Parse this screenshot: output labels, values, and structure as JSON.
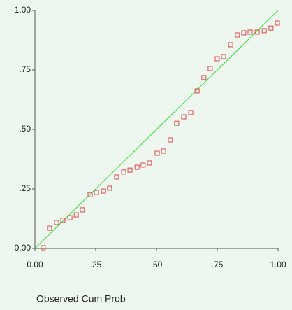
{
  "chart_data": {
    "type": "scatter",
    "xlabel": "Observed Cum Prob",
    "x": [
      0.034,
      0.06,
      0.089,
      0.115,
      0.144,
      0.17,
      0.195,
      0.227,
      0.253,
      0.282,
      0.307,
      0.336,
      0.365,
      0.391,
      0.42,
      0.445,
      0.471,
      0.503,
      0.529,
      0.557,
      0.583,
      0.612,
      0.641,
      0.667,
      0.695,
      0.721,
      0.75,
      0.776,
      0.805,
      0.833,
      0.859,
      0.885,
      0.914,
      0.943,
      0.971,
      0.997
    ],
    "series": [
      {
        "color": "#e04848",
        "values": [
          0.003,
          0.085,
          0.109,
          0.118,
          0.129,
          0.141,
          0.162,
          0.226,
          0.235,
          0.241,
          0.253,
          0.3,
          0.321,
          0.329,
          0.341,
          0.35,
          0.359,
          0.4,
          0.409,
          0.456,
          0.526,
          0.553,
          0.571,
          0.662,
          0.718,
          0.756,
          0.797,
          0.806,
          0.856,
          0.897,
          0.906,
          0.909,
          0.909,
          0.915,
          0.926,
          0.947
        ]
      }
    ],
    "reference_line_color": "#33dd33",
    "xlim": [
      0,
      1
    ],
    "ylim": [
      0,
      1
    ],
    "xticks": [
      {
        "value": 0,
        "label": "0.00"
      },
      {
        "value": 0.25,
        "label": ".25"
      },
      {
        "value": 0.5,
        "label": ".50"
      },
      {
        "value": 0.75,
        "label": ".75"
      },
      {
        "value": 1,
        "label": "1.00"
      }
    ],
    "yticks": [
      {
        "value": 0,
        "label": "0.00"
      },
      {
        "value": 0.25,
        "label": ".25"
      },
      {
        "value": 0.5,
        "label": ".50"
      },
      {
        "value": 0.75,
        "label": ".75"
      },
      {
        "value": 1,
        "label": "1.00"
      }
    ]
  }
}
